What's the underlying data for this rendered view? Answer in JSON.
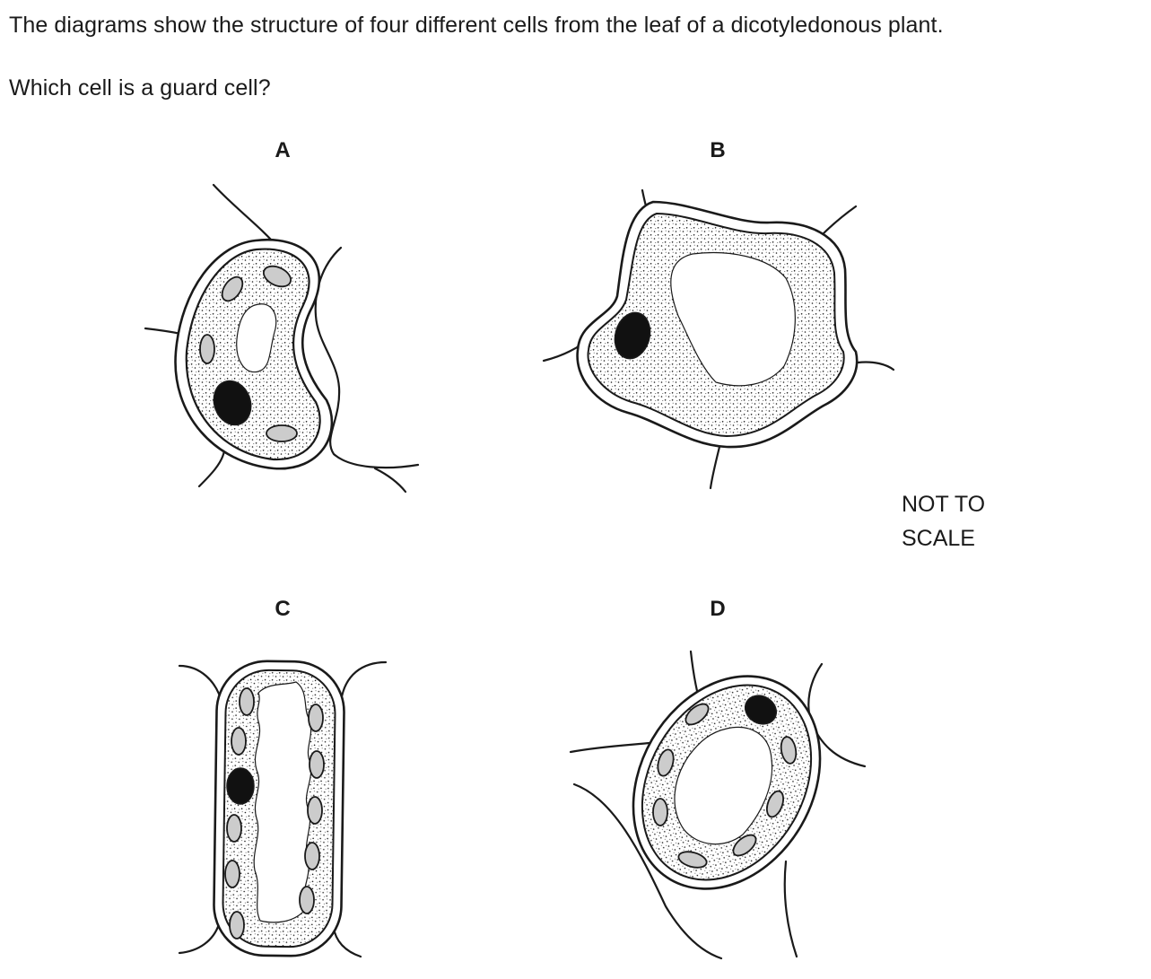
{
  "question": {
    "line1": "The diagrams show the structure of four different cells from the leaf of a dicotyledonous plant.",
    "line2": "Which cell is a guard cell?"
  },
  "labels": {
    "a": "A",
    "b": "B",
    "c": "C",
    "d": "D"
  },
  "note": {
    "line1": "NOT TO",
    "line2": "SCALE"
  },
  "colors": {
    "ink": "#1a1a1a",
    "chloroplast": "#cccccc",
    "nucleus": "#111111",
    "background": "#ffffff"
  }
}
